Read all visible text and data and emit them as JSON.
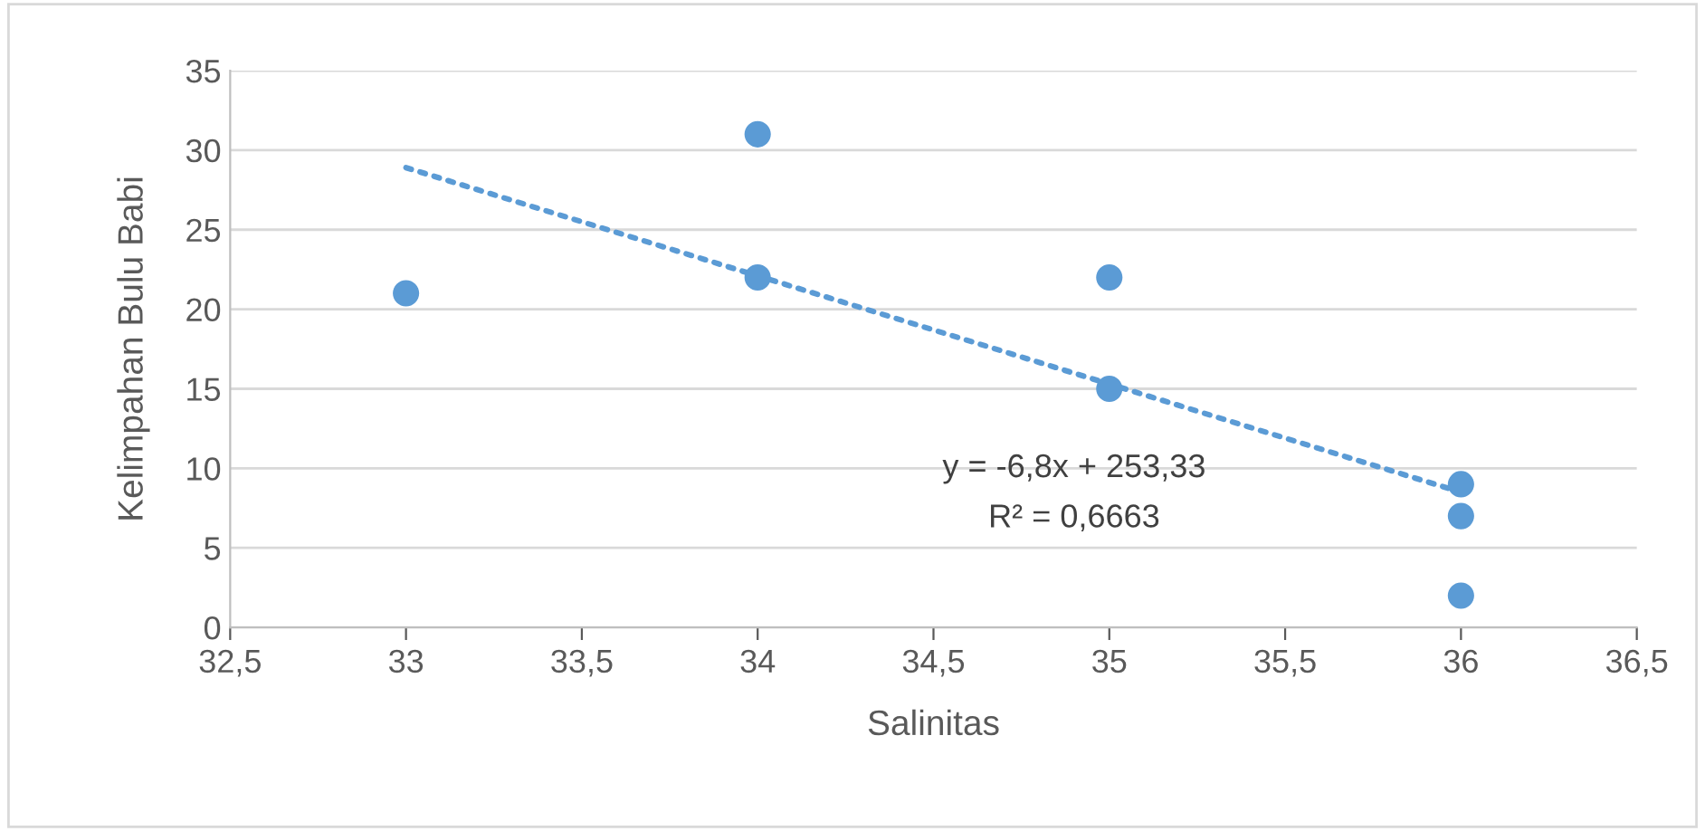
{
  "chart_data": {
    "type": "scatter",
    "xlabel": "Salinitas",
    "ylabel": "Kelimpahan Bulu Babi",
    "series": [
      {
        "color": "#5b9bd5",
        "marker": "circle",
        "x": [
          33,
          34,
          34,
          35,
          35,
          36,
          36,
          36
        ],
        "values": [
          21,
          31,
          22,
          22,
          15,
          9,
          7,
          2
        ]
      },
      {
        "type": "line",
        "color": "#5b9bd5",
        "line_style": "dotted",
        "marker": "none",
        "x": [
          33,
          36
        ],
        "values": [
          28.9,
          8.5
        ]
      }
    ],
    "annotations": [
      "y = -6,8x + 253,33",
      "R² = 0,6663"
    ],
    "xlim": [
      32.5,
      36.5
    ],
    "xticks": [
      {
        "value": 32.5,
        "label": "32,5"
      },
      33,
      {
        "value": 33.5,
        "label": "33,5"
      },
      34,
      {
        "value": 34.5,
        "label": "34,5"
      },
      35,
      {
        "value": 35.5,
        "label": "35,5"
      },
      36,
      {
        "value": 36.5,
        "label": "36,5"
      }
    ],
    "ylim": [
      0,
      35
    ],
    "yticks": [
      0,
      5,
      10,
      15,
      20,
      25,
      30,
      35
    ],
    "grid": "y",
    "legend": false
  }
}
